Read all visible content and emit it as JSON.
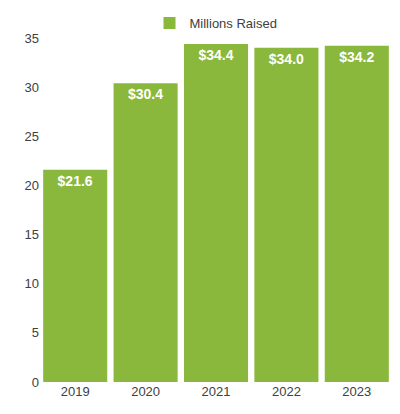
{
  "chart_data": {
    "type": "bar",
    "categories": [
      "2019",
      "2020",
      "2021",
      "2022",
      "2023"
    ],
    "series": [
      {
        "name": "Millions Raised",
        "color": "#8ab83c",
        "values": [
          21.6,
          30.4,
          34.4,
          34.0,
          34.2
        ],
        "value_labels": [
          "$21.6",
          "$30.4",
          "$34.4",
          "$34.0",
          "$34.2"
        ]
      }
    ],
    "ylim": [
      0,
      35
    ],
    "yticks": [
      0,
      5,
      10,
      15,
      20,
      25,
      30,
      35
    ],
    "grid": false,
    "legend": "top",
    "data_labels": true
  }
}
